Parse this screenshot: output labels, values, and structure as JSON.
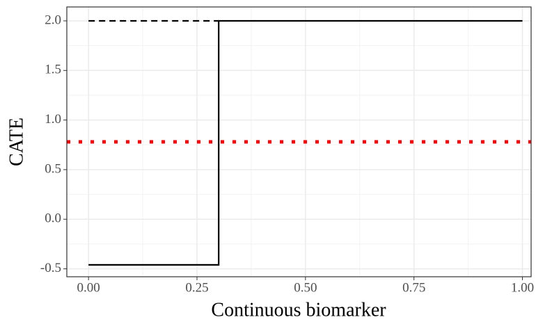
{
  "chart_data": {
    "type": "line",
    "x_label": "Continuous biomarker",
    "y_label": "CATE",
    "xlim": [
      -0.05,
      1.02
    ],
    "ylim": [
      -0.58,
      2.14
    ],
    "xticks": [
      {
        "value": 0,
        "label": "0.00"
      },
      0.25,
      {
        "value": 0.5,
        "label": "0.50"
      },
      0.75,
      {
        "value": 1,
        "label": "1.00"
      }
    ],
    "yticks": [
      -0.5,
      {
        "value": 0,
        "label": "0.0"
      },
      0.5,
      {
        "value": 1,
        "label": "1.0"
      },
      1.5,
      {
        "value": 2,
        "label": "2.0"
      }
    ],
    "grid": true,
    "series": [
      {
        "color": "#000000",
        "style": "solid",
        "x": [
          0,
          0.3,
          0.3,
          1
        ],
        "values": [
          -0.46,
          -0.46,
          2,
          2
        ]
      },
      {
        "color": "#000000",
        "style": "dashed",
        "x": [
          0,
          0.3
        ],
        "values": [
          2,
          2
        ]
      },
      {
        "color": "#ff0000",
        "style": "dotted",
        "x": [
          -0.05,
          1.02
        ],
        "values": [
          0.78,
          0.78
        ]
      }
    ]
  }
}
